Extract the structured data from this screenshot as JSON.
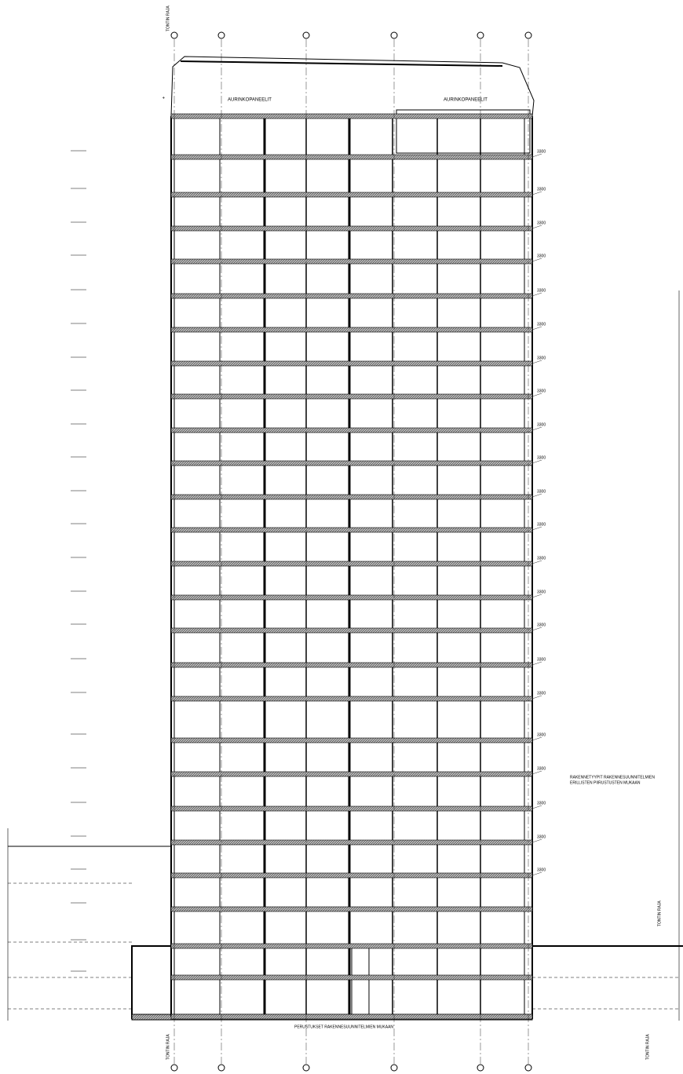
{
  "roof": {
    "label_left": "AURINKOPANEELIT",
    "label_right": "AURINKOPANEELIT"
  },
  "notes": [
    "RAKENNETYYPIT RAKENNESUUNNITELMIEN",
    "ERILLISTEN PIIRUSTUSTEN MUKAAN"
  ],
  "foundation_note": "PERUSTUKSET RAKENNESUUNNITELMIEN MUKAAN",
  "boundary_labels": [
    "TONTIN RAJA",
    "TONTIN RAJA",
    "TONTIN RAJA",
    "TONTIN RAJA"
  ],
  "floor_heights": [
    "3300",
    "3300",
    "3300",
    "3300",
    "3300",
    "3300",
    "3300",
    "3300",
    "3300",
    "3300",
    "3300",
    "3300",
    "3300",
    "3300",
    "3300",
    "3300",
    "3300",
    "3300",
    "3300",
    "3300",
    "3300",
    "3300"
  ]
}
